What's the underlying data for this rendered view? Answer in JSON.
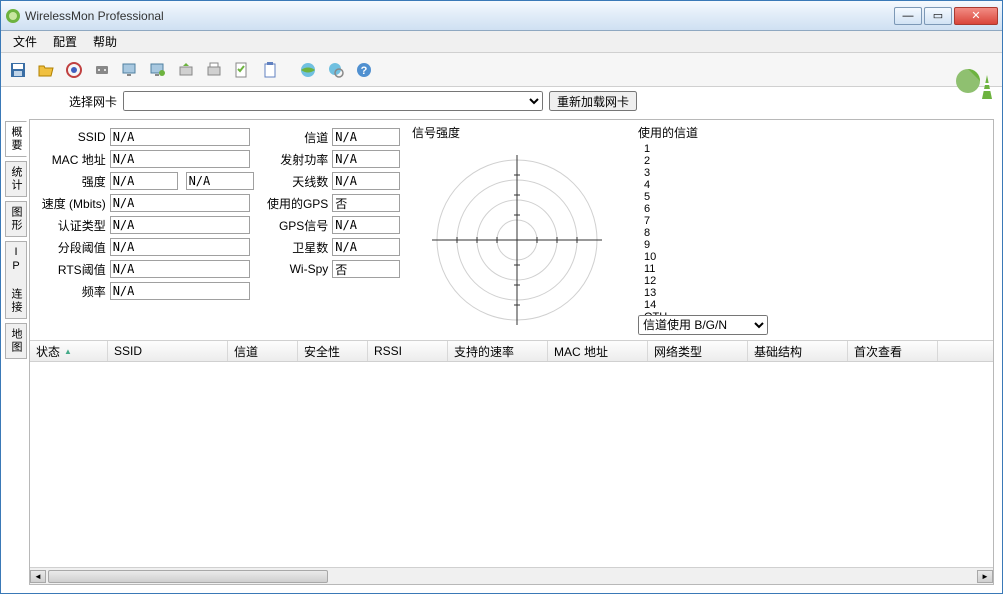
{
  "window": {
    "title": "WirelessMon Professional"
  },
  "menu": {
    "file": "文件",
    "config": "配置",
    "help": "帮助"
  },
  "nic": {
    "label": "选择网卡",
    "reload_btn": "重新加载网卡",
    "selected": ""
  },
  "fieldsLeft": {
    "ssid": {
      "label": "SSID",
      "value": "N/A"
    },
    "mac": {
      "label": "MAC 地址",
      "value": "N/A"
    },
    "strength": {
      "label": "强度",
      "value": "N/A",
      "value2": "N/A"
    },
    "speed": {
      "label": "速度 (Mbits)",
      "value": "N/A"
    },
    "auth": {
      "label": "认证类型",
      "value": "N/A"
    },
    "frag": {
      "label": "分段阈值",
      "value": "N/A"
    },
    "rts": {
      "label": "RTS阈值",
      "value": "N/A"
    },
    "freq": {
      "label": "频率",
      "value": "N/A"
    }
  },
  "fieldsRight": {
    "channel": {
      "label": "信道",
      "value": "N/A"
    },
    "txpower": {
      "label": "发射功率",
      "value": "N/A"
    },
    "antenna": {
      "label": "天线数",
      "value": "N/A"
    },
    "gps": {
      "label": "使用的GPS",
      "value": "否"
    },
    "gpssig": {
      "label": "GPS信号",
      "value": "N/A"
    },
    "sat": {
      "label": "卫星数",
      "value": "N/A"
    },
    "wispy": {
      "label": "Wi-Spy",
      "value": "否"
    }
  },
  "signal": {
    "title": "信号强度"
  },
  "channels": {
    "title": "使用的信道",
    "list": [
      "1",
      "2",
      "3",
      "4",
      "5",
      "6",
      "7",
      "8",
      "9",
      "10",
      "11",
      "12",
      "13",
      "14",
      "OTH"
    ],
    "select": "信道使用 B/G/N"
  },
  "vtabs": {
    "summary": "概要",
    "stats": "统计",
    "graph": "图形",
    "ipconn": "IP 连接",
    "map": "地图"
  },
  "table": {
    "columns": {
      "status": "状态",
      "ssid": "SSID",
      "channel": "信道",
      "security": "安全性",
      "rssi": "RSSI",
      "rates": "支持的速率",
      "mac": "MAC 地址",
      "nettype": "网络类型",
      "infra": "基础结构",
      "firstseen": "首次查看"
    },
    "colwidths": {
      "status": 78,
      "ssid": 120,
      "channel": 70,
      "security": 70,
      "rssi": 80,
      "rates": 100,
      "mac": 100,
      "nettype": 100,
      "infra": 100,
      "firstseen": 90
    }
  },
  "colors": {
    "titlebar_start": "#f6fafe",
    "titlebar_end": "#cfe0f2",
    "border": "#3a79b7",
    "close": "#d9453a"
  }
}
